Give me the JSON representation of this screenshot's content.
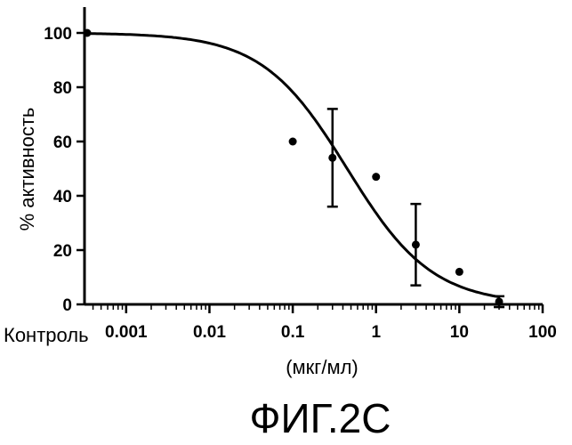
{
  "chart_data": {
    "type": "scatter",
    "xscale": "log",
    "xlabel": "(мкг/мл)",
    "ylabel": "% активность",
    "ylim": [
      0,
      110
    ],
    "x_ticks": [
      {
        "label": "Контроль"
      },
      {
        "label": "0.001",
        "value": 0.001
      },
      {
        "label": "0.01",
        "value": 0.01
      },
      {
        "label": "0.1",
        "value": 0.1
      },
      {
        "label": "1",
        "value": 1
      },
      {
        "label": "10",
        "value": 10
      },
      {
        "label": "100",
        "value": 100
      }
    ],
    "y_ticks": [
      0,
      20,
      40,
      60,
      80,
      100
    ],
    "points": [
      {
        "x": "Контроль",
        "y": 100
      },
      {
        "x": 0.1,
        "y": 60
      },
      {
        "x": 0.3,
        "y": 54,
        "err": 18
      },
      {
        "x": 1,
        "y": 47
      },
      {
        "x": 3,
        "y": 22,
        "err": 15
      },
      {
        "x": 10,
        "y": 12
      },
      {
        "x": 30,
        "y": 1,
        "err": 2
      }
    ],
    "fit_curve": {
      "top": 100,
      "bottom": 0,
      "ic50": 0.45,
      "hill": 0.85
    },
    "caption": "ФИГ.2С"
  }
}
